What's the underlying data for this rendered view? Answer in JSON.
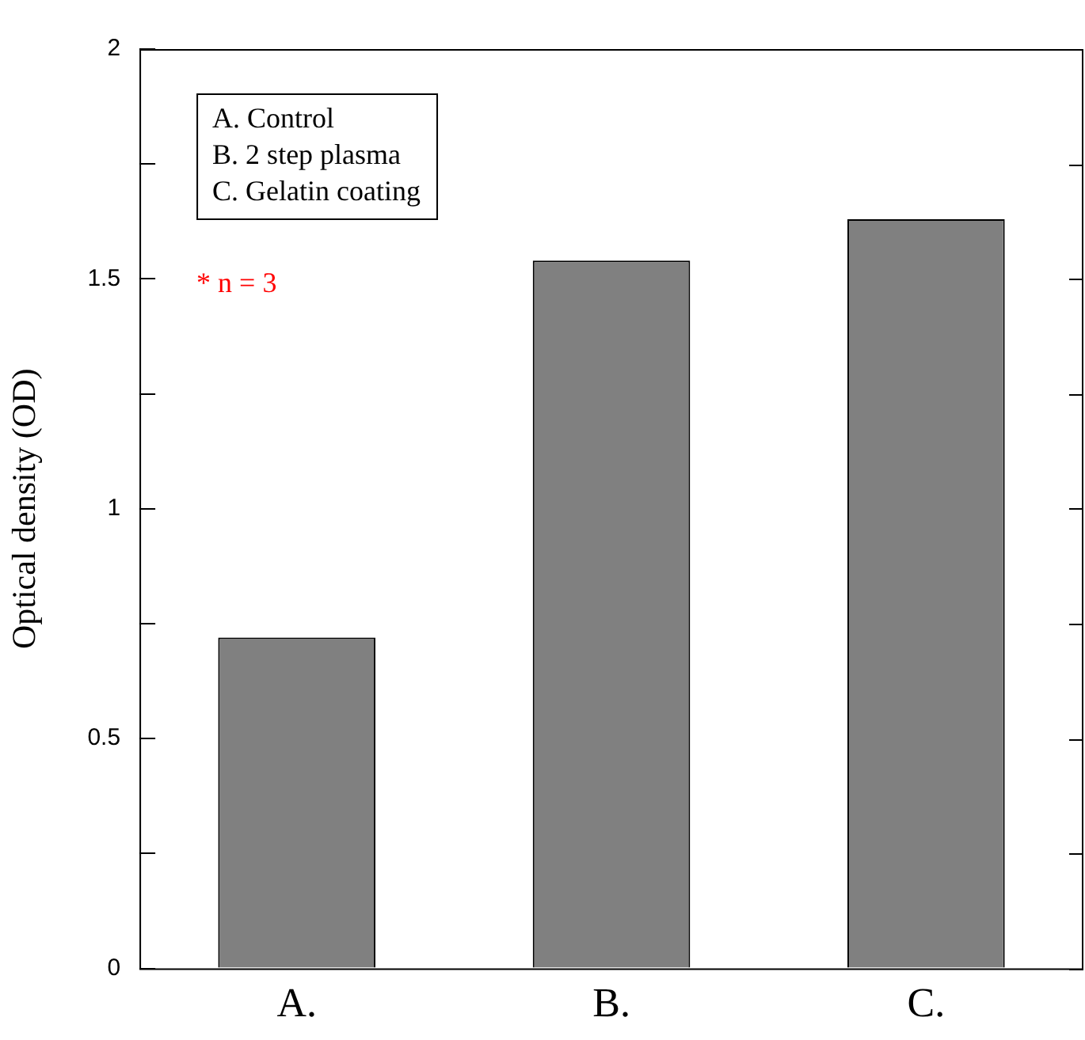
{
  "chart_data": {
    "type": "bar",
    "ylabel": "Optical density (OD)",
    "categories": [
      "A.",
      "B.",
      "C."
    ],
    "values": [
      0.72,
      1.54,
      1.63
    ],
    "color": "#808080",
    "ylim": [
      0,
      2
    ],
    "yticks": [
      0,
      {
        "value": 0.25,
        "label": null
      },
      {
        "value": 0.5,
        "label": "0.5"
      },
      {
        "value": 0.75,
        "label": null
      },
      1,
      {
        "value": 1.25,
        "label": null
      },
      {
        "value": 1.5,
        "label": "1.5"
      },
      {
        "value": 1.75,
        "label": null
      },
      2
    ],
    "grid": false,
    "annotations": [
      "A. Control",
      "B. 2 step plasma",
      "C. Gelatin coating",
      "* n = 3"
    ]
  }
}
